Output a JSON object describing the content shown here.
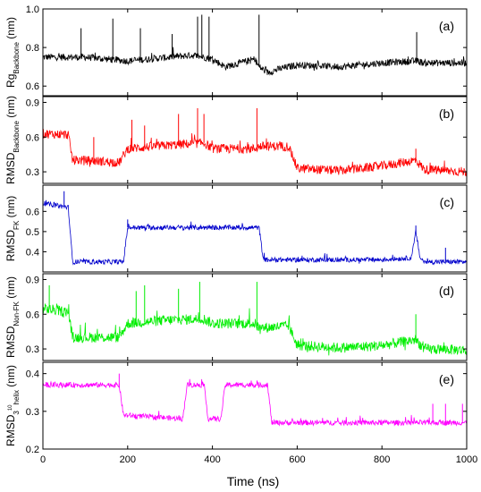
{
  "chart_data": {
    "type": "line",
    "xlabel": "Time (ns)",
    "xlim": [
      0,
      1000
    ],
    "xticks": [
      "0",
      "200",
      "400",
      "600",
      "800",
      "1000"
    ],
    "panels": [
      {
        "tag": "(a)",
        "ylabel_main": "Rg",
        "ylabel_sub": "Backbone",
        "ylabel_sup": "",
        "ylabel_unit": " (nm)",
        "ylim": [
          0.55,
          1.0
        ],
        "yticks": [
          0.6,
          0.8,
          1.0
        ],
        "ytick_labels": [
          "0.6",
          "0.8",
          "1.0"
        ],
        "color": "#000000",
        "series": {
          "x": [
            0,
            100,
            200,
            300,
            350,
            380,
            400,
            430,
            500,
            510,
            530,
            560,
            600,
            700,
            800,
            880,
            900,
            1000
          ],
          "y": [
            0.75,
            0.75,
            0.73,
            0.75,
            0.76,
            0.75,
            0.74,
            0.7,
            0.74,
            0.7,
            0.67,
            0.69,
            0.71,
            0.7,
            0.72,
            0.73,
            0.72,
            0.72
          ],
          "noise": 0.018,
          "spikes": [
            [
              90,
              0.9
            ],
            [
              165,
              0.95
            ],
            [
              230,
              0.9
            ],
            [
              305,
              0.87
            ],
            [
              365,
              0.96
            ],
            [
              375,
              0.97
            ],
            [
              392,
              0.96
            ],
            [
              510,
              0.97
            ],
            [
              882,
              0.88
            ]
          ]
        }
      },
      {
        "tag": "(b)",
        "ylabel_main": "RMSD",
        "ylabel_sub": "Backbone",
        "ylabel_sup": "",
        "ylabel_unit": " (nm)",
        "ylim": [
          0.2,
          0.95
        ],
        "yticks": [
          0.3,
          0.6,
          0.9
        ],
        "ytick_labels": [
          "0.3",
          "0.6",
          "0.9"
        ],
        "color": "#ff0000",
        "series": {
          "x": [
            0,
            60,
            70,
            100,
            180,
            200,
            300,
            380,
            400,
            500,
            510,
            580,
            600,
            700,
            800,
            880,
            900,
            1000
          ],
          "y": [
            0.63,
            0.62,
            0.4,
            0.4,
            0.38,
            0.5,
            0.53,
            0.55,
            0.5,
            0.5,
            0.52,
            0.52,
            0.33,
            0.31,
            0.35,
            0.4,
            0.32,
            0.3
          ],
          "noise": 0.04,
          "spikes": [
            [
              120,
              0.6
            ],
            [
              210,
              0.75
            ],
            [
              240,
              0.7
            ],
            [
              320,
              0.8
            ],
            [
              365,
              0.85
            ],
            [
              380,
              0.8
            ],
            [
              505,
              0.85
            ],
            [
              880,
              0.5
            ]
          ]
        }
      },
      {
        "tag": "(c)",
        "ylabel_main": "RMSD",
        "ylabel_sub": "FK",
        "ylabel_sup": "",
        "ylabel_unit": " (nm)",
        "ylim": [
          0.3,
          0.73
        ],
        "yticks": [
          0.4,
          0.5,
          0.6
        ],
        "ytick_labels": [
          "0.4",
          "0.5",
          "0.6"
        ],
        "color": "#0000cc",
        "series": {
          "x": [
            0,
            60,
            70,
            190,
            200,
            300,
            400,
            500,
            510,
            520,
            800,
            870,
            880,
            890,
            900,
            1000
          ],
          "y": [
            0.64,
            0.62,
            0.35,
            0.35,
            0.52,
            0.52,
            0.52,
            0.52,
            0.52,
            0.36,
            0.36,
            0.37,
            0.5,
            0.37,
            0.35,
            0.35
          ],
          "noise": 0.012,
          "spikes": [
            [
              50,
              0.7
            ],
            [
              200,
              0.56
            ],
            [
              880,
              0.53
            ],
            [
              950,
              0.42
            ]
          ]
        }
      },
      {
        "tag": "(d)",
        "ylabel_main": "RMSD",
        "ylabel_sub": "Non-FK",
        "ylabel_sup": "",
        "ylabel_unit": " (nm)",
        "ylim": [
          0.2,
          0.95
        ],
        "yticks": [
          0.3,
          0.6,
          0.9
        ],
        "ytick_labels": [
          "0.3",
          "0.6",
          "0.9"
        ],
        "color": "#00ee00",
        "series": {
          "x": [
            0,
            60,
            70,
            100,
            180,
            200,
            300,
            380,
            400,
            500,
            510,
            580,
            600,
            700,
            800,
            880,
            900,
            1000
          ],
          "y": [
            0.65,
            0.62,
            0.4,
            0.4,
            0.4,
            0.52,
            0.55,
            0.56,
            0.52,
            0.52,
            0.48,
            0.5,
            0.33,
            0.31,
            0.33,
            0.38,
            0.3,
            0.29
          ],
          "noise": 0.045,
          "spikes": [
            [
              15,
              0.85
            ],
            [
              220,
              0.8
            ],
            [
              240,
              0.85
            ],
            [
              320,
              0.82
            ],
            [
              370,
              0.88
            ],
            [
              505,
              0.88
            ],
            [
              880,
              0.6
            ]
          ]
        }
      },
      {
        "tag": "(e)",
        "ylabel_main": "RMSD",
        "ylabel_sub": "helix",
        "ylabel_sup": "3",
        "ylabel_sup2": "10",
        "ylabel_unit": " (nm)",
        "ylim": [
          0.2,
          0.43
        ],
        "yticks": [
          0.2,
          0.3,
          0.4
        ],
        "ytick_labels": [
          "0.2",
          "0.3",
          "0.4"
        ],
        "color": "#ff00ff",
        "series": {
          "x": [
            0,
            180,
            190,
            330,
            340,
            380,
            390,
            420,
            430,
            530,
            540,
            1000
          ],
          "y": [
            0.37,
            0.37,
            0.29,
            0.28,
            0.37,
            0.37,
            0.28,
            0.28,
            0.37,
            0.37,
            0.27,
            0.27
          ],
          "noise": 0.007,
          "spikes": [
            [
              180,
              0.4
            ],
            [
              920,
              0.32
            ],
            [
              950,
              0.32
            ],
            [
              990,
              0.32
            ]
          ]
        }
      }
    ]
  }
}
